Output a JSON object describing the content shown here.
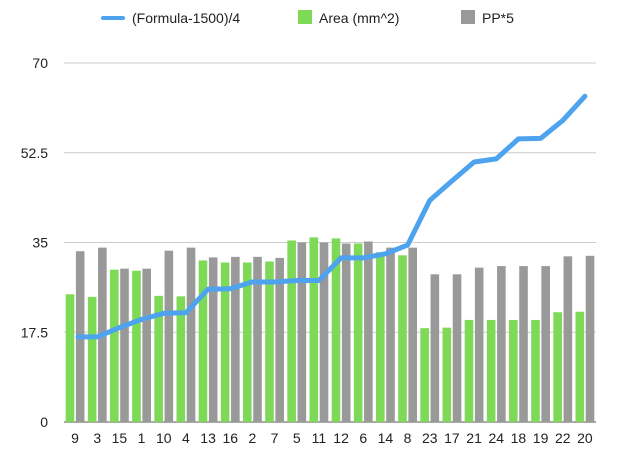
{
  "chart_data": {
    "type": "bar",
    "categories": [
      "9",
      "3",
      "15",
      "1",
      "10",
      "4",
      "13",
      "16",
      "2",
      "7",
      "5",
      "11",
      "12",
      "6",
      "14",
      "8",
      "23",
      "17",
      "21",
      "24",
      "18",
      "19",
      "22",
      "20"
    ],
    "series": [
      {
        "name": "(Formula-1500)/4",
        "kind": "line",
        "color": "#4DA3EE",
        "values": [
          16.6,
          16.6,
          18.4,
          20.0,
          21.2,
          21.3,
          25.9,
          26.0,
          27.3,
          27.3,
          27.6,
          27.6,
          32.0,
          32.0,
          32.8,
          34.5,
          43.2,
          47.0,
          50.7,
          51.3,
          55.2,
          55.3,
          58.8,
          63.5
        ]
      },
      {
        "name": "Area (mm^2)",
        "kind": "bar",
        "color": "#7ED957",
        "values": [
          24.9,
          24.4,
          29.7,
          29.5,
          24.6,
          24.5,
          31.5,
          31.1,
          31.1,
          31.3,
          35.4,
          36.0,
          35.8,
          34.8,
          33.1,
          32.5,
          18.3,
          18.4,
          19.9,
          19.9,
          19.9,
          19.9,
          21.4,
          21.5
        ]
      },
      {
        "name": "PP*5",
        "kind": "bar",
        "color": "#999999",
        "values": [
          33.3,
          34.0,
          29.9,
          29.9,
          33.4,
          34.0,
          32.1,
          32.2,
          32.2,
          32.0,
          35.0,
          35.0,
          34.8,
          35.2,
          34.0,
          34.0,
          28.8,
          28.8,
          30.1,
          30.4,
          30.4,
          30.4,
          32.3,
          32.4
        ]
      }
    ],
    "yticks": [
      "0",
      "17.5",
      "35",
      "52.5",
      "70"
    ],
    "ylim": [
      0,
      70
    ],
    "grid": true,
    "legend_position": "top"
  }
}
